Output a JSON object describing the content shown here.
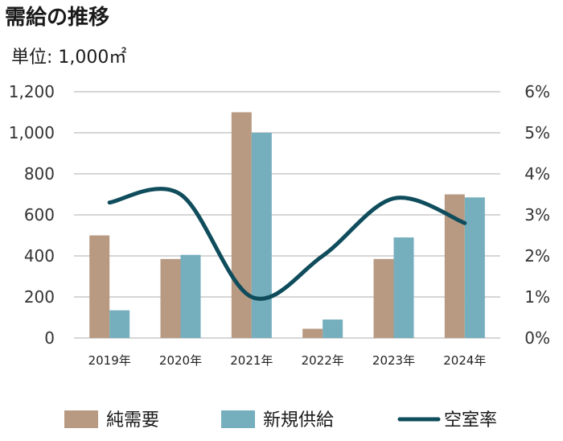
{
  "chart_data": {
    "type": "bar",
    "title": "需給の推移",
    "unit": "単位: 1,000㎡",
    "categories": [
      "2019年",
      "2020年",
      "2021年",
      "2022年",
      "2023年",
      "2024年"
    ],
    "series": [
      {
        "name": "純需要",
        "type": "bar",
        "axis": "left",
        "color": "#b89a82",
        "values": [
          500,
          385,
          1100,
          45,
          385,
          700
        ]
      },
      {
        "name": "新規供給",
        "type": "bar",
        "axis": "left",
        "color": "#75aebd",
        "values": [
          135,
          405,
          1000,
          90,
          490,
          685
        ]
      },
      {
        "name": "空室率",
        "type": "line",
        "axis": "right",
        "color": "#0f4c5c",
        "values": [
          3.3,
          3.5,
          1.0,
          2.0,
          3.4,
          2.8
        ]
      }
    ],
    "ylim": [
      0,
      1200
    ],
    "yticks": [
      "0",
      "200",
      "400",
      "600",
      "800",
      "1,000",
      "1,200"
    ],
    "y2lim": [
      0,
      6
    ],
    "y2ticks": [
      "0%",
      "1%",
      "2%",
      "3%",
      "4%",
      "5%",
      "6%"
    ],
    "grid": true,
    "legend_position": "bottom"
  }
}
